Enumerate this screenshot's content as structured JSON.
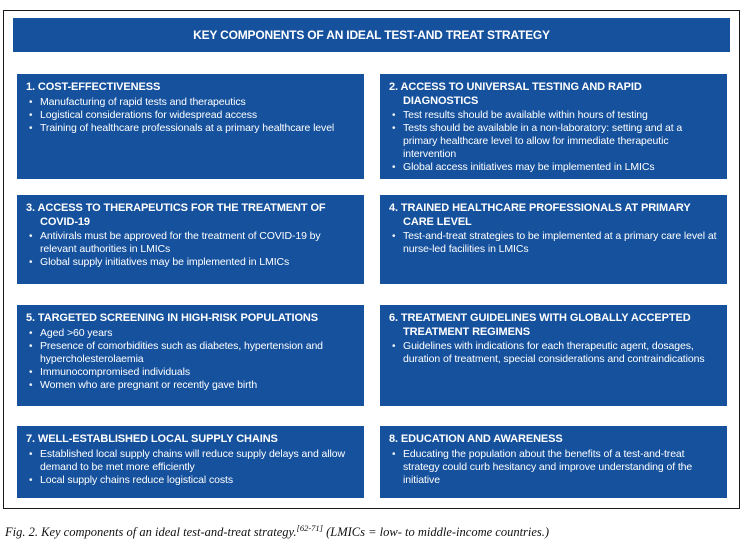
{
  "figure": {
    "title": "KEY COMPONENTS OF AN IDEAL TEST-AND TREAT STRATEGY",
    "colors": {
      "box_blue": "#15519D",
      "frame_border": "#1B1B1B",
      "text_on_blue": "#FFFFFF"
    },
    "boxes": [
      {
        "heading": "1. COST-EFFECTIVENESS",
        "bullets": [
          "Manufacturing of rapid tests and therapeutics",
          "Logistical considerations for widespread access",
          "Training of healthcare professionals at a primary healthcare level"
        ]
      },
      {
        "heading": "2. ACCESS TO UNIVERSAL TESTING AND RAPID DIAGNOSTICS",
        "bullets": [
          "Test results should be available within hours of testing",
          "Tests should be available in a non-laboratory: setting and at a primary healthcare level to allow for immediate therapeutic intervention",
          "Global access initiatives may be implemented in LMICs"
        ]
      },
      {
        "heading": "3. ACCESS TO THERAPEUTICS FOR THE TREATMENT OF COVID-19",
        "bullets": [
          "Antivirals must be approved for the treatment of COVID-19 by relevant authorities in LMICs",
          "Global supply initiatives may be implemented in LMICs"
        ]
      },
      {
        "heading": "4. TRAINED HEALTHCARE PROFESSIONALS AT PRIMARY CARE LEVEL",
        "bullets": [
          "Test-and-treat strategies to be implemented at a primary care level at nurse-led facilities in LMICs"
        ]
      },
      {
        "heading": "5. TARGETED SCREENING IN HIGH-RISK POPULATIONS",
        "bullets": [
          "Aged >60 years",
          "Presence of comorbidities such as diabetes, hypertension and hypercholesterolaemia",
          "Immunocompromised individuals",
          "Women who are pregnant or recently gave birth"
        ]
      },
      {
        "heading": "6. TREATMENT GUIDELINES WITH GLOBALLY ACCEPTED TREATMENT REGIMENS",
        "bullets": [
          "Guidelines with indications for each therapeutic agent, dosages, duration of treatment, special considerations and contraindications"
        ]
      },
      {
        "heading": "7. WELL-ESTABLISHED LOCAL SUPPLY CHAINS",
        "bullets": [
          "Established local supply chains will reduce supply delays and allow demand to be met more efficiently",
          "Local supply chains reduce logistical costs"
        ]
      },
      {
        "heading": "8. EDUCATION AND AWARENESS",
        "bullets": [
          "Educating the population about the benefits of a test-and-treat strategy could curb hesitancy and improve understanding of the initiative"
        ]
      }
    ],
    "caption": {
      "text": "Fig. 2. Key components of an ideal test-and-treat strategy.",
      "reference": "[62-71]",
      "note": " (LMICs = low- to middle-income countries.)"
    }
  }
}
